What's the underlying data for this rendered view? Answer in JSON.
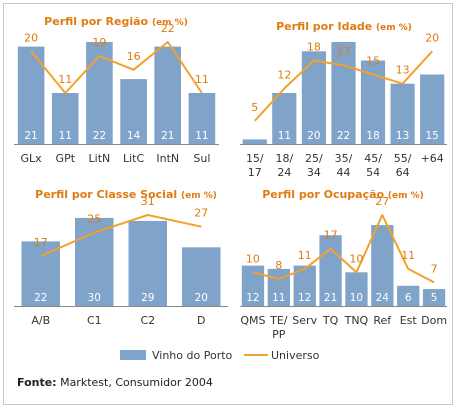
{
  "colors": {
    "bar": "#7fa3c9",
    "line": "#f5a02b",
    "title": "#e07b12",
    "barLabel": "#ffffff",
    "axis": "#333333"
  },
  "legend": {
    "bar": "Vinho do Porto",
    "line": "Universo"
  },
  "source": {
    "label": "Fonte:",
    "text": "Marktest, Consumidor 2004"
  },
  "chart_data": [
    {
      "type": "bar",
      "title": "Perfil por Região",
      "title_unit": "(em %)",
      "categories": [
        [
          "GLx"
        ],
        [
          "GPt"
        ],
        [
          "LitN"
        ],
        [
          "LitC"
        ],
        [
          "IntN"
        ],
        [
          "Sul"
        ]
      ],
      "series": [
        {
          "name": "Vinho do Porto",
          "type": "bar",
          "values": [
            21,
            11,
            22,
            14,
            21,
            11
          ]
        },
        {
          "name": "Universo",
          "type": "line",
          "values": [
            20,
            11,
            19,
            16,
            22,
            11
          ]
        }
      ]
    },
    {
      "type": "bar",
      "title": "Perfil por Idade",
      "title_unit": "(em %)",
      "categories": [
        [
          "15/",
          "17"
        ],
        [
          "18/",
          "24"
        ],
        [
          "25/",
          "34"
        ],
        [
          "35/",
          "44"
        ],
        [
          "45/",
          "54"
        ],
        [
          "55/",
          "64"
        ],
        [
          "+64"
        ]
      ],
      "series": [
        {
          "name": "Vinho do Porto",
          "type": "bar",
          "values": [
            1,
            11,
            20,
            22,
            18,
            13,
            15
          ]
        },
        {
          "name": "Universo",
          "type": "line",
          "values": [
            5,
            12,
            18,
            17,
            15,
            13,
            20
          ]
        }
      ]
    },
    {
      "type": "bar",
      "title": "Perfil por Classe Social",
      "title_unit": "(em %)",
      "categories": [
        [
          "A/B"
        ],
        [
          "C1"
        ],
        [
          "C2"
        ],
        [
          "D"
        ]
      ],
      "series": [
        {
          "name": "Vinho do Porto",
          "type": "bar",
          "values": [
            22,
            30,
            29,
            20
          ]
        },
        {
          "name": "Universo",
          "type": "line",
          "values": [
            17,
            25,
            31,
            27
          ]
        }
      ]
    },
    {
      "type": "bar",
      "title": "Perfil por Ocupação",
      "title_unit": "(em %)",
      "categories": [
        [
          "QMS"
        ],
        [
          "TE/",
          "PP"
        ],
        [
          "Serv"
        ],
        [
          "TQ"
        ],
        [
          "TNQ"
        ],
        [
          "Ref"
        ],
        [
          "Est"
        ],
        [
          "Dom"
        ]
      ],
      "series": [
        {
          "name": "Vinho do Porto",
          "type": "bar",
          "values": [
            12,
            11,
            12,
            21,
            10,
            24,
            6,
            5
          ]
        },
        {
          "name": "Universo",
          "type": "line",
          "values": [
            10,
            8,
            11,
            17,
            10,
            27,
            11,
            7
          ]
        }
      ]
    }
  ]
}
